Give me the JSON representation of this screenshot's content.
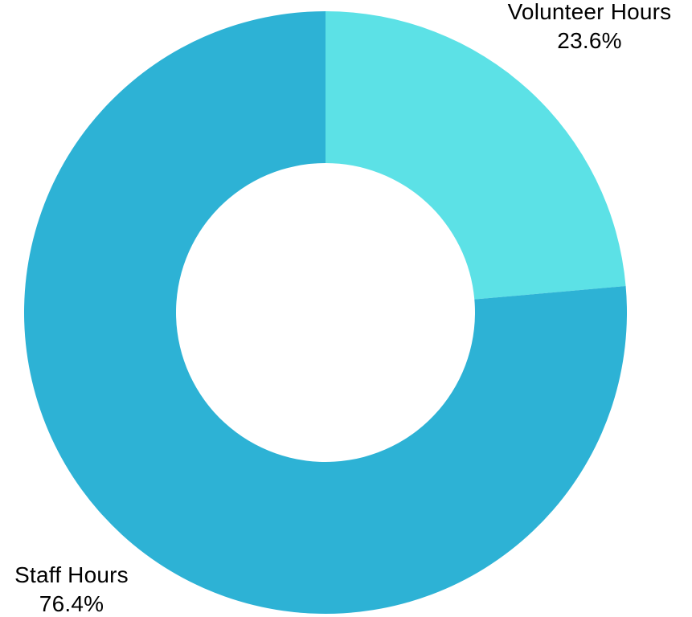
{
  "chart_data": {
    "type": "pie",
    "subtype": "donut",
    "title": "",
    "direction": "clockwise",
    "start_angle_deg": 0,
    "inner_radius_ratio": 0.496,
    "background_color": "#FFFFFF",
    "label_color": "#000000",
    "segments": [
      {
        "label": "Volunteer Hours",
        "value": 23.6,
        "display": "23.6%",
        "color": "#5CE1E6"
      },
      {
        "label": "Staff Hours",
        "value": 76.4,
        "display": "76.4%",
        "color": "#2DB2D5"
      }
    ]
  }
}
